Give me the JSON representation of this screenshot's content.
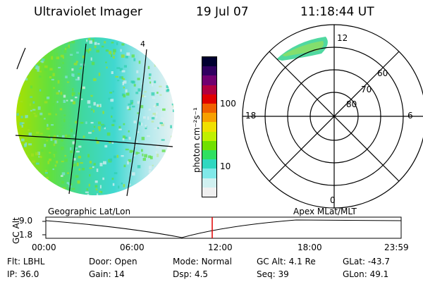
{
  "header": {
    "instrument": "Ultraviolet Imager",
    "date": "19 Jul 07",
    "time": "11:18:44 UT"
  },
  "geo_panel": {
    "label": "Geographic Lat/Lon",
    "edge_tick": "4"
  },
  "colorbar": {
    "unit_label": "photon cm⁻²s⁻¹",
    "ticks": [
      "100",
      "10"
    ],
    "scale": "log",
    "colors": [
      "#000030",
      "#300060",
      "#700070",
      "#b00040",
      "#e00000",
      "#f06000",
      "#f8a000",
      "#f0e000",
      "#c0f000",
      "#70e000",
      "#30e060",
      "#30d8c0",
      "#80e8e8",
      "#d0f0f0",
      "#f0f0f0"
    ]
  },
  "polar_panel": {
    "label": "Apex MLat/MLT",
    "mlt_labels": {
      "top": "12",
      "left": "18",
      "right": "6",
      "bottom": "0"
    },
    "lat_labels": [
      "60",
      "70",
      "80"
    ]
  },
  "altitude_plot": {
    "ylabel": "GC Alt",
    "yticks": [
      "9.0",
      "1.8"
    ],
    "xticks": [
      "00:00",
      "06:00",
      "12:00",
      "18:00",
      "23:59"
    ],
    "marker_color": "#e00000"
  },
  "info_rows": [
    [
      {
        "k": "Flt:",
        "v": "LBHL"
      },
      {
        "k": "Door:",
        "v": "Open"
      },
      {
        "k": "Mode:",
        "v": "Normal"
      },
      {
        "k": "GC Alt:",
        "v": "4.1 Re"
      },
      {
        "k": "GLat:",
        "v": "-43.7"
      }
    ],
    [
      {
        "k": "IP:",
        "v": "36.0"
      },
      {
        "k": "Gain:",
        "v": "14"
      },
      {
        "k": "Dsp:",
        "v": "4.5"
      },
      {
        "k": "Seq:",
        "v": "39"
      },
      {
        "k": "GLon:",
        "v": "49.1"
      }
    ]
  ]
}
